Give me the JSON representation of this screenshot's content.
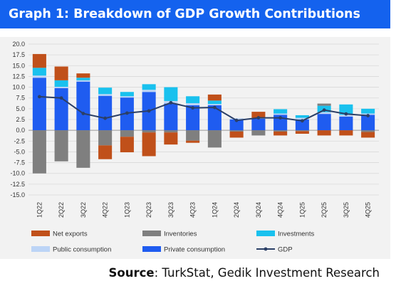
{
  "header": {
    "title": "Graph 1: Breakdown of GDP Growth Contributions"
  },
  "source": {
    "label": "Source",
    "text": ": TurkStat, Gedik Investment Research"
  },
  "chart_data": {
    "type": "bar",
    "stacked": true,
    "categories": [
      "1Q22",
      "2Q22",
      "3Q22",
      "4Q22",
      "1Q23",
      "2Q23",
      "3Q23",
      "4Q23",
      "1Q24",
      "2Q24",
      "3Q24",
      "4Q24",
      "1Q25",
      "2Q25",
      "3Q25",
      "4Q25"
    ],
    "ylim": [
      -15.0,
      20.0
    ],
    "yticks": [
      "20.0",
      "17.5",
      "15.0",
      "12.5",
      "10.0",
      "7.5",
      "5.0",
      "2.5",
      "0.0",
      "-2.5",
      "-5.0",
      "-7.5",
      "-10.0",
      "-12.5",
      "-15.0"
    ],
    "grid": true,
    "legend_position": "bottom",
    "series": [
      {
        "name": "Private consumption",
        "kind": "bar",
        "color": "#1f5cf0",
        "values": [
          12.2,
          9.8,
          11.3,
          8.0,
          7.6,
          8.9,
          6.2,
          5.8,
          5.8,
          2.5,
          2.7,
          3.6,
          2.5,
          3.8,
          3.2,
          3.6
        ]
      },
      {
        "name": "Public consumption",
        "kind": "bar",
        "color": "#bcd4f6",
        "values": [
          0.5,
          0.3,
          0.3,
          0.4,
          0.3,
          0.5,
          0.6,
          0.5,
          0.3,
          0.3,
          0.2,
          0.3,
          0.4,
          0.4,
          0.4,
          0.3
        ]
      },
      {
        "name": "Investments",
        "kind": "bar",
        "color": "#19c1ee",
        "values": [
          1.8,
          1.5,
          0.6,
          1.5,
          1.0,
          1.3,
          3.2,
          1.6,
          0.8,
          0.0,
          0.0,
          1.0,
          0.6,
          1.5,
          2.4,
          1.1
        ]
      },
      {
        "name": "Inventories",
        "kind": "bar",
        "color": "#7f7f7f",
        "values": [
          -10.0,
          -7.2,
          -8.7,
          -3.5,
          -1.5,
          -0.5,
          -0.5,
          -2.4,
          -4.0,
          -0.3,
          -1.2,
          -0.3,
          -0.2,
          0.5,
          0.0,
          -0.4
        ]
      },
      {
        "name": "Net exports",
        "kind": "bar",
        "color": "#c0501a",
        "values": [
          3.2,
          3.2,
          1.0,
          -3.2,
          -3.6,
          -5.5,
          -2.8,
          -0.5,
          1.4,
          -1.4,
          1.4,
          -0.9,
          -0.6,
          -1.2,
          -1.2,
          -1.3
        ]
      },
      {
        "name": "GDP",
        "kind": "line",
        "color": "#2b3f66",
        "values": [
          7.8,
          7.5,
          3.9,
          2.8,
          4.0,
          4.5,
          6.4,
          5.2,
          5.3,
          2.3,
          2.9,
          2.9,
          2.2,
          4.7,
          3.8,
          3.4
        ]
      }
    ],
    "legend": [
      "Net exports",
      "Inventories",
      "Investments",
      "Public consumption",
      "Private consumption",
      "GDP"
    ]
  }
}
